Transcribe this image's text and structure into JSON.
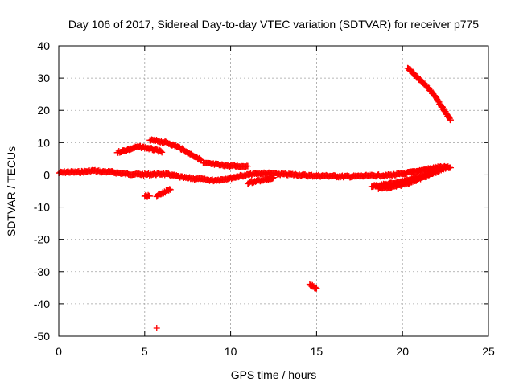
{
  "chart_data": {
    "type": "scatter",
    "title": "Day 106 of 2017, Sidereal Day-to-day VTEC variation (SDTVAR) for receiver p775",
    "xlabel": "GPS time / hours",
    "ylabel": "SDTVAR / TECUs",
    "xlim": [
      0,
      25
    ],
    "ylim": [
      -50,
      40
    ],
    "xticks": [
      0,
      5,
      10,
      15,
      20,
      25
    ],
    "yticks": [
      40,
      30,
      20,
      10,
      0,
      -10,
      -20,
      -30,
      -40,
      -50
    ],
    "grid": true,
    "legend": "none",
    "marker": "plus",
    "color": "#ff0000",
    "series": [
      {
        "tracks": [
          [
            [
              0.0,
              0.6
            ],
            [
              0.5,
              0.9
            ],
            [
              1.0,
              0.8
            ],
            [
              1.5,
              1.0
            ],
            [
              2.0,
              1.3
            ],
            [
              2.5,
              1.0
            ],
            [
              3.0,
              0.9
            ],
            [
              3.5,
              0.6
            ],
            [
              4.0,
              0.3
            ],
            [
              4.5,
              0.2
            ],
            [
              5.0,
              0.1
            ],
            [
              5.5,
              0.2
            ],
            [
              6.0,
              0.3
            ],
            [
              6.5,
              0.0
            ],
            [
              7.0,
              -0.6
            ],
            [
              7.5,
              -1.0
            ],
            [
              8.0,
              -1.2
            ],
            [
              8.5,
              -1.5
            ],
            [
              9.0,
              -1.7
            ],
            [
              9.5,
              -1.4
            ],
            [
              10.0,
              -1.0
            ],
            [
              10.5,
              -0.4
            ],
            [
              11.0,
              0.0
            ],
            [
              11.5,
              0.4
            ],
            [
              12.0,
              0.5
            ],
            [
              12.5,
              0.4
            ],
            [
              13.0,
              0.2
            ],
            [
              13.5,
              0.1
            ],
            [
              14.0,
              0.0
            ],
            [
              14.5,
              -0.2
            ],
            [
              15.0,
              -0.3
            ],
            [
              15.5,
              -0.3
            ],
            [
              16.0,
              -0.4
            ],
            [
              16.5,
              -0.5
            ],
            [
              17.0,
              -0.5
            ],
            [
              17.5,
              -0.4
            ],
            [
              18.0,
              -0.3
            ],
            [
              18.5,
              -0.2
            ],
            [
              19.0,
              -0.2
            ],
            [
              19.5,
              0.0
            ],
            [
              20.0,
              0.3
            ],
            [
              20.5,
              0.8
            ],
            [
              21.0,
              1.3
            ],
            [
              21.5,
              1.8
            ],
            [
              22.0,
              2.3
            ],
            [
              22.5,
              2.4
            ],
            [
              22.8,
              2.2
            ]
          ],
          [
            [
              3.4,
              7.0
            ],
            [
              3.8,
              7.5
            ],
            [
              4.2,
              8.1
            ],
            [
              4.6,
              8.7
            ],
            [
              5.0,
              8.5
            ],
            [
              5.4,
              8.0
            ],
            [
              5.8,
              7.5
            ],
            [
              6.0,
              7.0
            ]
          ],
          [
            [
              5.3,
              10.8
            ],
            [
              5.8,
              10.5
            ],
            [
              6.4,
              9.8
            ],
            [
              7.0,
              8.5
            ],
            [
              7.5,
              7.0
            ],
            [
              8.0,
              5.5
            ],
            [
              8.3,
              4.5
            ]
          ],
          [
            [
              8.4,
              3.6
            ],
            [
              9.0,
              3.3
            ],
            [
              9.5,
              3.0
            ],
            [
              10.0,
              2.8
            ],
            [
              10.5,
              2.7
            ],
            [
              11.0,
              2.7
            ]
          ],
          [
            [
              20.3,
              33.3
            ],
            [
              20.8,
              30.5
            ],
            [
              21.3,
              28.0
            ],
            [
              21.8,
              25.0
            ],
            [
              22.3,
              21.0
            ],
            [
              22.8,
              17.0
            ]
          ],
          [
            [
              18.2,
              -3.5
            ],
            [
              19.0,
              -3.0
            ],
            [
              20.0,
              -2.0
            ],
            [
              21.0,
              -0.5
            ],
            [
              21.7,
              0.6
            ]
          ],
          [
            [
              18.6,
              -4.2
            ],
            [
              19.2,
              -4.0
            ],
            [
              19.8,
              -3.3
            ],
            [
              20.5,
              -2.2
            ],
            [
              21.2,
              -0.8
            ],
            [
              21.9,
              0.8
            ],
            [
              22.6,
              2.3
            ]
          ],
          [
            [
              11.0,
              -2.5
            ],
            [
              11.5,
              -1.9
            ],
            [
              12.0,
              -1.5
            ],
            [
              12.5,
              -0.8
            ]
          ],
          [
            [
              5.0,
              -6.5
            ],
            [
              5.3,
              -6.6
            ]
          ],
          [
            [
              5.7,
              -6.5
            ],
            [
              6.0,
              -5.7
            ],
            [
              6.3,
              -5.0
            ],
            [
              6.5,
              -4.6
            ]
          ],
          [
            [
              14.6,
              -34.0
            ],
            [
              14.8,
              -34.6
            ],
            [
              15.0,
              -35.2
            ]
          ],
          [
            [
              5.7,
              -47.5
            ]
          ]
        ]
      }
    ]
  }
}
